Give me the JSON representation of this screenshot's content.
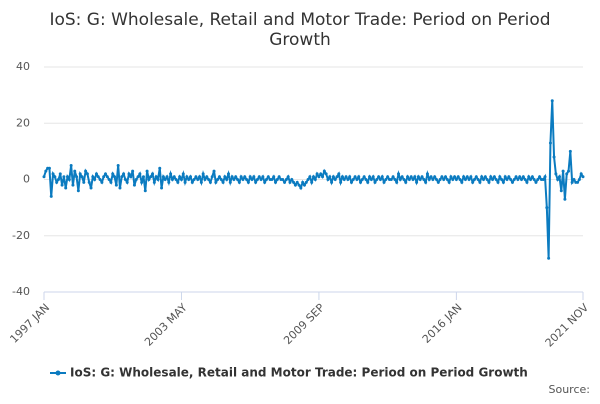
{
  "chart_data": {
    "type": "line",
    "title": "IoS: G: Wholesale, Retail and Motor Trade: Period on Period Growth",
    "source": "Source:",
    "categories": [
      "1997 JAN",
      null,
      null,
      null,
      null,
      null,
      null,
      null,
      null,
      null,
      null,
      null,
      null,
      null,
      null,
      null,
      null,
      null,
      null,
      null,
      null,
      null,
      null,
      null,
      null,
      null,
      null,
      null,
      null,
      null,
      null,
      null,
      null,
      null,
      null,
      null,
      null,
      null,
      null,
      null,
      null,
      null,
      null,
      null,
      null,
      null,
      null,
      null,
      null,
      null,
      null,
      null,
      null,
      null,
      null,
      null,
      null,
      null,
      null,
      null,
      null,
      null,
      null,
      null,
      null,
      null,
      null,
      null,
      null,
      null,
      null,
      null,
      null,
      null,
      null,
      null,
      "2003 MAY",
      null,
      null,
      null,
      null,
      null,
      null,
      null,
      null,
      null,
      null,
      null,
      null,
      null,
      null,
      null,
      null,
      null,
      null,
      null,
      null,
      null,
      null,
      null,
      null,
      null,
      null,
      null,
      null,
      null,
      null,
      null,
      null,
      null,
      null,
      null,
      null,
      null,
      null,
      null,
      null,
      null,
      null,
      null,
      null,
      null,
      null,
      null,
      null,
      null,
      null,
      null,
      null,
      null,
      null,
      null,
      null,
      null,
      null,
      null,
      null,
      null,
      null,
      null,
      null,
      null,
      null,
      null,
      null,
      null,
      null,
      null,
      null,
      null,
      null,
      null,
      "2009 SEP",
      null,
      null,
      null,
      null,
      null,
      null,
      null,
      null,
      null,
      null,
      null,
      null,
      null,
      null,
      null,
      null,
      null,
      null,
      null,
      null,
      null,
      null,
      null,
      null,
      null,
      null,
      null,
      null,
      null,
      null,
      null,
      null,
      null,
      null,
      null,
      null,
      null,
      null,
      null,
      null,
      null,
      null,
      null,
      null,
      null,
      null,
      null,
      null,
      null,
      null,
      null,
      null,
      null,
      null,
      null,
      null,
      null,
      null,
      null,
      null,
      null,
      null,
      null,
      null,
      null,
      null,
      null,
      null,
      null,
      null,
      null,
      null,
      null,
      null,
      null,
      "2016 JAN",
      null,
      null,
      null,
      null,
      null,
      null,
      null,
      null,
      null,
      null,
      null,
      null,
      null,
      null,
      null,
      null,
      null,
      null,
      null,
      null,
      null,
      null,
      null,
      null,
      null,
      null,
      null,
      null,
      null,
      null,
      null,
      null,
      null,
      null,
      null,
      null,
      null,
      null,
      null,
      null,
      null,
      null,
      null,
      null,
      null,
      null,
      null,
      null,
      null,
      null,
      null,
      null,
      null,
      null,
      null,
      null,
      null,
      null,
      null,
      null,
      null,
      null,
      null,
      null,
      null,
      null,
      null,
      null,
      null,
      "2021 NOV"
    ],
    "series": [
      {
        "name": "IoS: G: Wholesale, Retail and Motor Trade: Period on Period Growth",
        "color": "#0b7bc0",
        "values": [
          1,
          3,
          4,
          4,
          -6,
          2,
          1,
          -1,
          0,
          2,
          -2,
          1,
          -3,
          1,
          0,
          5,
          -2,
          3,
          1,
          -4,
          2,
          1,
          -1,
          3,
          2,
          -1,
          -3,
          1,
          0,
          2,
          1,
          0,
          -1,
          1,
          2,
          1,
          0,
          -1,
          2,
          1,
          -2,
          5,
          -3,
          1,
          2,
          0,
          -1,
          2,
          1,
          3,
          -2,
          0,
          1,
          2,
          -1,
          1,
          -4,
          3,
          0,
          1,
          2,
          -1,
          1,
          0,
          4,
          -3,
          1,
          0,
          1,
          -1,
          2,
          0,
          1,
          0,
          -1,
          1,
          0,
          2,
          -1,
          1,
          0,
          1,
          -1,
          0,
          1,
          0,
          1,
          -1,
          2,
          0,
          1,
          0,
          -1,
          1,
          3,
          -1,
          0,
          1,
          0,
          -1,
          1,
          0,
          2,
          -1,
          1,
          0,
          1,
          0,
          -1,
          1,
          0,
          1,
          0,
          -1,
          1,
          0,
          1,
          -1,
          0,
          1,
          0,
          1,
          -1,
          0,
          1,
          0,
          0,
          1,
          -1,
          0,
          1,
          0,
          0,
          -1,
          0,
          1,
          -1,
          0,
          -1,
          -2,
          -1,
          -2,
          -3,
          -1,
          -2,
          -1,
          0,
          1,
          -1,
          1,
          0,
          2,
          1,
          2,
          1,
          3,
          2,
          0,
          1,
          -1,
          1,
          0,
          1,
          2,
          -1,
          1,
          0,
          1,
          0,
          1,
          -1,
          0,
          1,
          0,
          1,
          -1,
          0,
          1,
          0,
          -1,
          1,
          0,
          1,
          -1,
          0,
          1,
          0,
          1,
          -1,
          0,
          1,
          0,
          0,
          1,
          0,
          -1,
          2,
          0,
          1,
          0,
          -1,
          1,
          0,
          1,
          0,
          1,
          -1,
          1,
          0,
          1,
          0,
          -1,
          2,
          0,
          1,
          0,
          1,
          0,
          -1,
          0,
          1,
          0,
          1,
          0,
          -1,
          1,
          0,
          1,
          0,
          1,
          0,
          -1,
          1,
          0,
          1,
          0,
          1,
          -1,
          0,
          1,
          0,
          -1,
          1,
          0,
          1,
          0,
          -1,
          1,
          0,
          1,
          0,
          -1,
          1,
          0,
          -1,
          1,
          0,
          1,
          0,
          -1,
          0,
          1,
          0,
          1,
          0,
          1,
          0,
          -1,
          1,
          0,
          1,
          0,
          -1,
          0,
          1,
          0,
          0,
          1,
          -10,
          -28,
          13,
          28,
          8,
          2,
          0,
          1,
          -4,
          3,
          -7,
          2,
          3,
          10,
          -1,
          0,
          -1,
          -1,
          0,
          2,
          1
        ]
      }
    ],
    "ylim": [
      -40,
      40
    ],
    "yticks": [
      -40,
      -20,
      0,
      20,
      40
    ],
    "grid": true,
    "legend": "bottom"
  }
}
